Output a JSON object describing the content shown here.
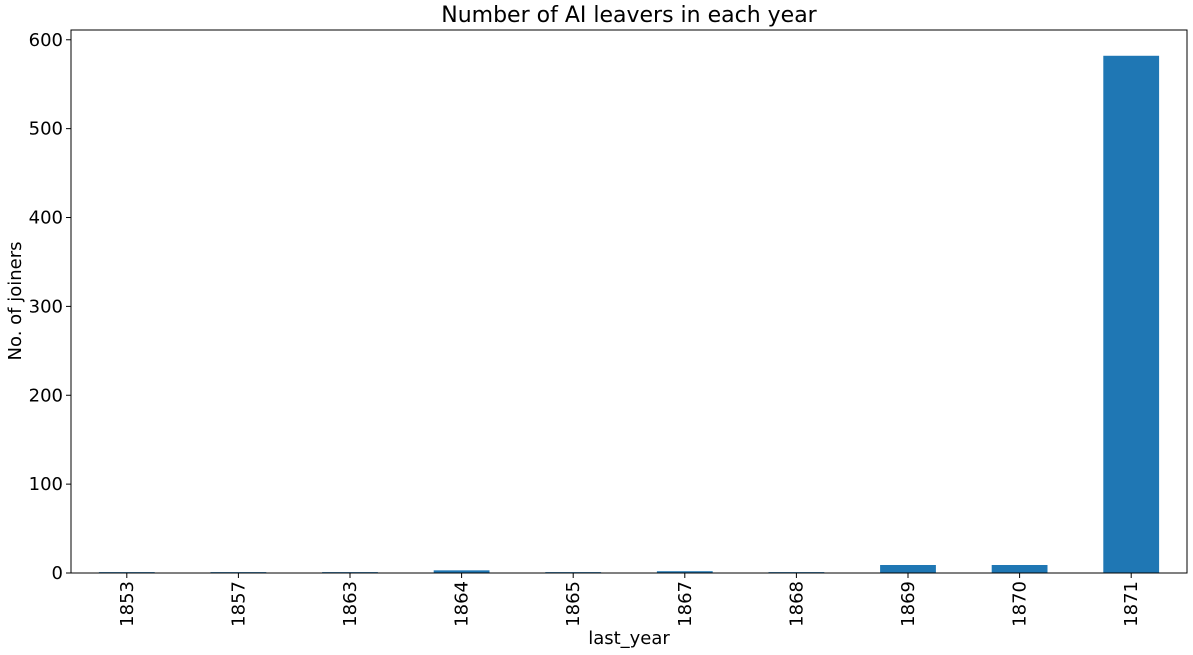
{
  "chart_data": {
    "type": "bar",
    "title": "Number of AI leavers in each year",
    "xlabel": "last_year",
    "ylabel": "No. of joiners",
    "categories": [
      "1853",
      "1857",
      "1863",
      "1864",
      "1865",
      "1867",
      "1868",
      "1869",
      "1870",
      "1871"
    ],
    "values": [
      1,
      1,
      1,
      3,
      1,
      2,
      1,
      9,
      9,
      582
    ],
    "ylim": [
      0,
      611
    ],
    "yticks": [
      0,
      100,
      200,
      300,
      400,
      500,
      600
    ],
    "bar_color": "#1f77b4",
    "grid": false
  }
}
